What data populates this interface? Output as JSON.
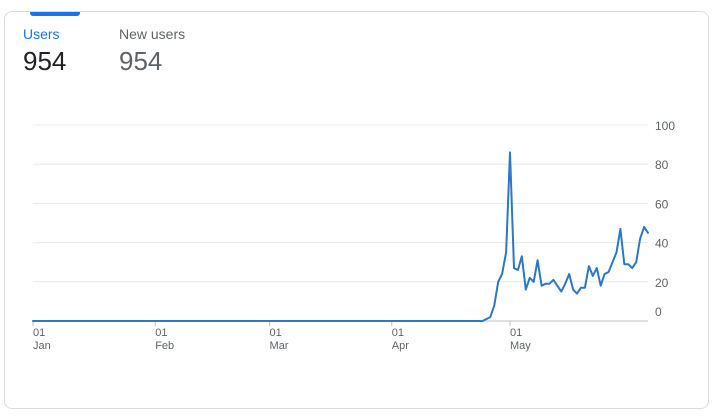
{
  "metrics": [
    {
      "label": "Users",
      "value": "954",
      "active": true
    },
    {
      "label": "New users",
      "value": "954",
      "active": false
    }
  ],
  "colors": {
    "accent": "#1a73e8",
    "series": "#2b78c5"
  },
  "chart_data": {
    "type": "line",
    "series": [
      {
        "values": [
          [
            1,
            0
          ],
          [
            10,
            0
          ],
          [
            20,
            0
          ],
          [
            30,
            0
          ],
          [
            40,
            0
          ],
          [
            50,
            0
          ],
          [
            60,
            0
          ],
          [
            70,
            0
          ],
          [
            80,
            0
          ],
          [
            90,
            0
          ],
          [
            100,
            0
          ],
          [
            110,
            0
          ],
          [
            115,
            0
          ],
          [
            117,
            2
          ],
          [
            118,
            8
          ],
          [
            119,
            20
          ],
          [
            120,
            24
          ],
          [
            121,
            35
          ],
          [
            122,
            86
          ],
          [
            123,
            27
          ],
          [
            124,
            26
          ],
          [
            125,
            33
          ],
          [
            126,
            16
          ],
          [
            127,
            22
          ],
          [
            128,
            20
          ],
          [
            129,
            31
          ],
          [
            130,
            18
          ],
          [
            131,
            19
          ],
          [
            132,
            19
          ],
          [
            133,
            21
          ],
          [
            134,
            18
          ],
          [
            135,
            15
          ],
          [
            136,
            19
          ],
          [
            137,
            24
          ],
          [
            138,
            16
          ],
          [
            139,
            14
          ],
          [
            140,
            17
          ],
          [
            141,
            17
          ],
          [
            142,
            28
          ],
          [
            143,
            23
          ],
          [
            144,
            27
          ],
          [
            145,
            18
          ],
          [
            146,
            24
          ],
          [
            147,
            25
          ],
          [
            148,
            30
          ],
          [
            149,
            35
          ],
          [
            150,
            47
          ],
          [
            151,
            29
          ],
          [
            152,
            29
          ],
          [
            153,
            27
          ],
          [
            154,
            30
          ],
          [
            155,
            42
          ],
          [
            156,
            48
          ],
          [
            157,
            45
          ]
        ]
      }
    ],
    "ylim": [
      0,
      100
    ],
    "yticks": [
      0,
      20,
      40,
      60,
      80,
      100
    ],
    "xticks": [
      {
        "day": 1,
        "label_top": "01",
        "label_bottom": "Jan"
      },
      {
        "day": 32,
        "label_top": "01",
        "label_bottom": "Feb"
      },
      {
        "day": 61,
        "label_top": "01",
        "label_bottom": "Mar"
      },
      {
        "day": 92,
        "label_top": "01",
        "label_bottom": "Apr"
      },
      {
        "day": 122,
        "label_top": "01",
        "label_bottom": "May"
      }
    ],
    "xlim": [
      1,
      157
    ],
    "grid": true
  }
}
